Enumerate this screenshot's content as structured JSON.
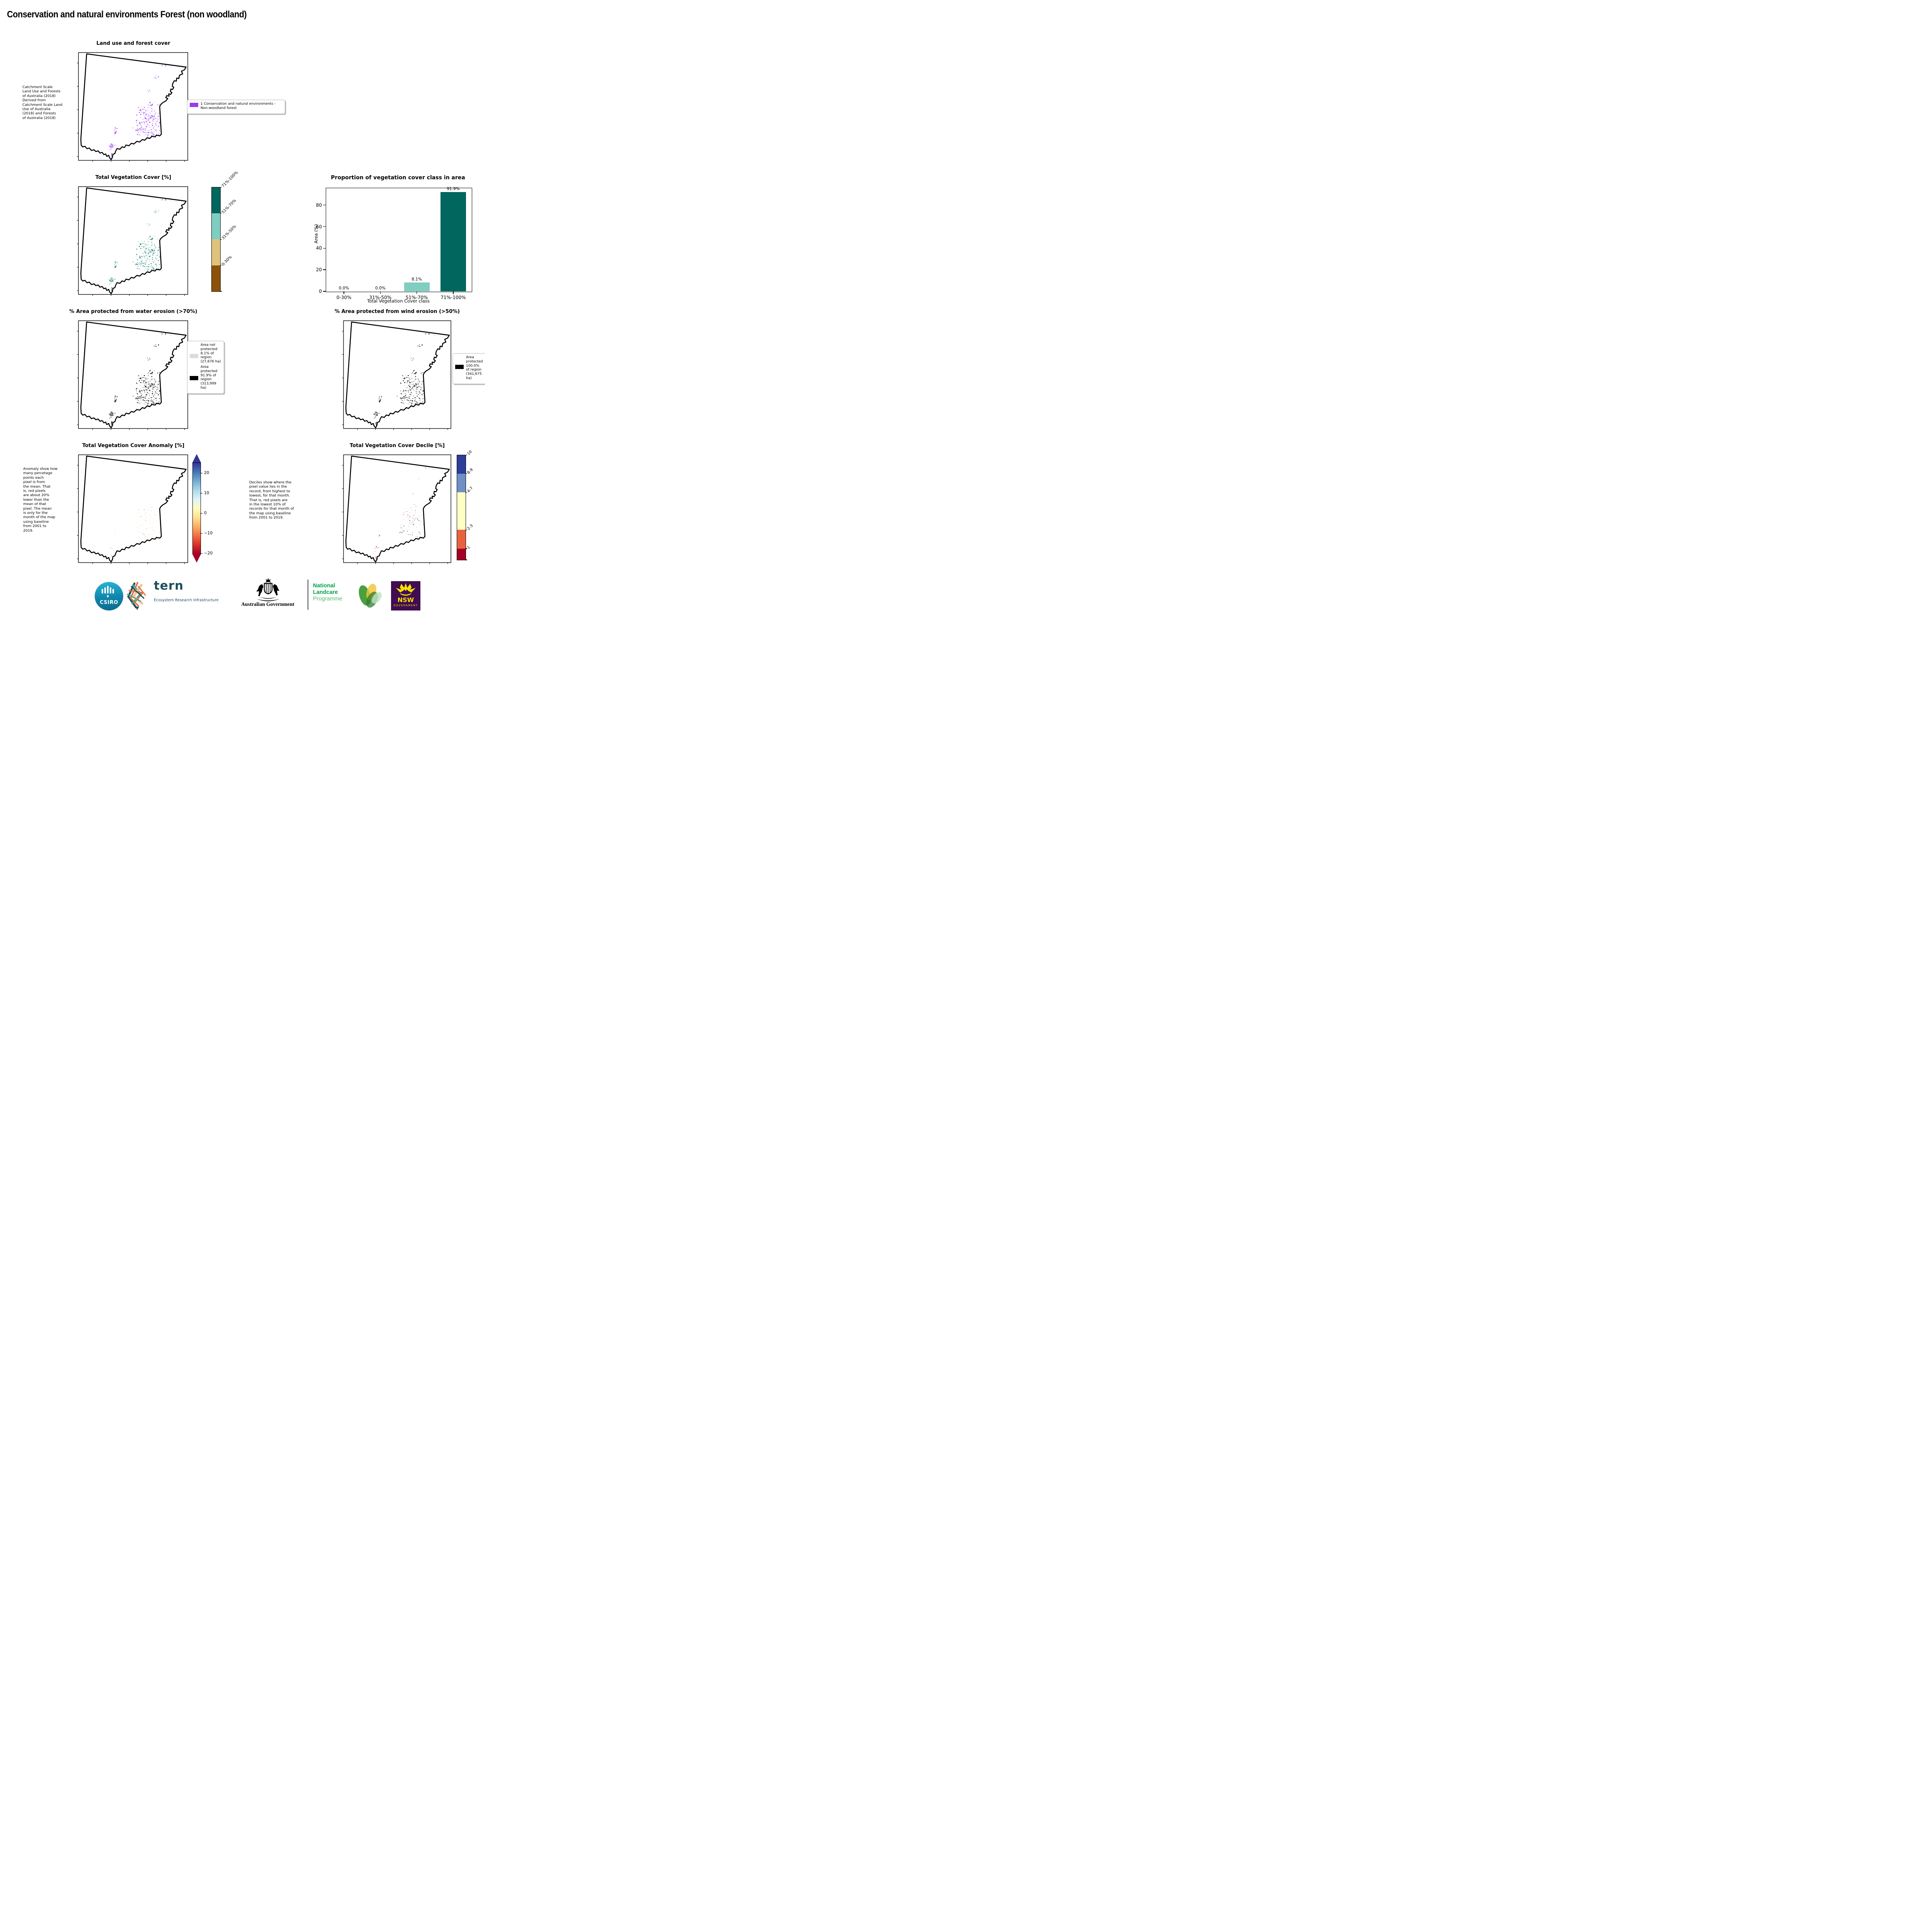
{
  "page_title": "Conservation and natural environments Forest (non woodland)",
  "panels": {
    "landuse": {
      "title": "Land use and forest cover",
      "side_note": " Catchment Scale\nLand Use and Forests\nof Australia (2018)\nDerived from\nCatchment Scale Land\nUse of Australia\n(2018) and Forests\nof Australia (2018)",
      "legend": {
        "swatch_color": "#9a3bf0",
        "label": "1 Conservation and natural environments - Non-woodland forest"
      }
    },
    "veg_cover": {
      "title": "Total Vegetation Cover [%]",
      "colorbar": {
        "labels": [
          "71%-100%",
          "51%-70%",
          "31%-50%",
          "0-30%"
        ],
        "colors": [
          "#01665e",
          "#80cdc1",
          "#dfc27d",
          "#8c510a"
        ]
      }
    },
    "water": {
      "title": "% Area protected from water erosion (>70%)",
      "legend": [
        {
          "swatch_color": "#dcdcdc",
          "label": "Area not protected 8.1% of region (27,676 ha)"
        },
        {
          "swatch_color": "#000000",
          "label": "Area protected 91.9% of region (313,999 ha)"
        }
      ]
    },
    "wind": {
      "title": "% Area protected from wind erosion (>50%)",
      "legend": [
        {
          "swatch_color": "#000000",
          "label": "Area protected 100.0% of region (341,675 ha)"
        }
      ]
    },
    "anomaly": {
      "title": "Total Vegetation Cover Anomaly [%]",
      "side_note": "Anomaly show how\nmany percetage\npoints each\npixel is from\nthe mean. That\nis, red pixels\nare about 20%\nlower than the\nmean of that\npixel. The mean\nis only for the\nmonth of the map\nusing baseline\nfrom 2001 to\n2019.",
      "colorbar": {
        "ticks": [
          "20",
          "10",
          "0",
          "−10",
          "−20"
        ],
        "gradient_bottom_to_top": [
          "#a50026",
          "#d73027",
          "#f46d43",
          "#fdae61",
          "#fee090",
          "#fffbbf",
          "#e0f3f8",
          "#abd9e9",
          "#74add1",
          "#4575b4",
          "#313695"
        ]
      }
    },
    "decile": {
      "title": "Total Vegetation Cover Decile [%]",
      "side_note": "Deciles show where the\npixel value lies in the\nrecord, from highest to\nlowest, for that month.\nThat is, red pixels are\nin the lowest 10% of\nrecords for that month of\nthe map using baseline\nfrom 2001 to 2019.",
      "colorbar": {
        "labels": [
          "10",
          "8-9",
          "4-7",
          "2-3",
          "1"
        ],
        "colors": [
          "#2c3e97",
          "#6f8fc5",
          "#feffc3",
          "#e8623e",
          "#a50026"
        ],
        "fractions": [
          0.179,
          0.178,
          0.357,
          0.179,
          0.107
        ]
      }
    }
  },
  "chart_data": {
    "type": "bar",
    "title": "Proportion of vegetation cover class in area",
    "categories": [
      "0-30%",
      "31%-50%",
      "51%-70%",
      "71%-100%"
    ],
    "values": [
      0.0,
      0.0,
      8.1,
      91.9
    ],
    "bar_labels": [
      "0.0%",
      "0.0%",
      "8.1%",
      "91.9%"
    ],
    "bar_colors": [
      "#8c510a",
      "#dfc27d",
      "#80cdc1",
      "#01665e"
    ],
    "xlabel": "Total Vegetation Cover class",
    "ylabel": "Area (%)",
    "yticks": [
      0,
      20,
      40,
      60,
      80
    ],
    "ylim": [
      0,
      96
    ],
    "grid": false,
    "legend_position": "none"
  },
  "footer": {
    "csiro_label": "CSIRO",
    "tern_label": "tern",
    "tern_sub": "Ecosystem Research Infrastructure",
    "aus_gov": "Australian Government",
    "nlp": [
      "National",
      "Landcare",
      "Programme"
    ],
    "nsw_label": "NSW",
    "nsw_sub": "GOVERNMENT"
  },
  "colors": {
    "forest_purple": "#9a3bf0",
    "teal_dark": "#01665e",
    "teal_light": "#80cdc1",
    "tan": "#dfc27d",
    "brown": "#8c510a",
    "landcare_green": "#00A14B",
    "landcare_light_green": "#58b96b",
    "nsw_purple": "#3f0d50",
    "nsw_yellow": "#f7e200",
    "csiro_teal": "#14a0c2",
    "tern_ink": "#1d4f5a"
  }
}
